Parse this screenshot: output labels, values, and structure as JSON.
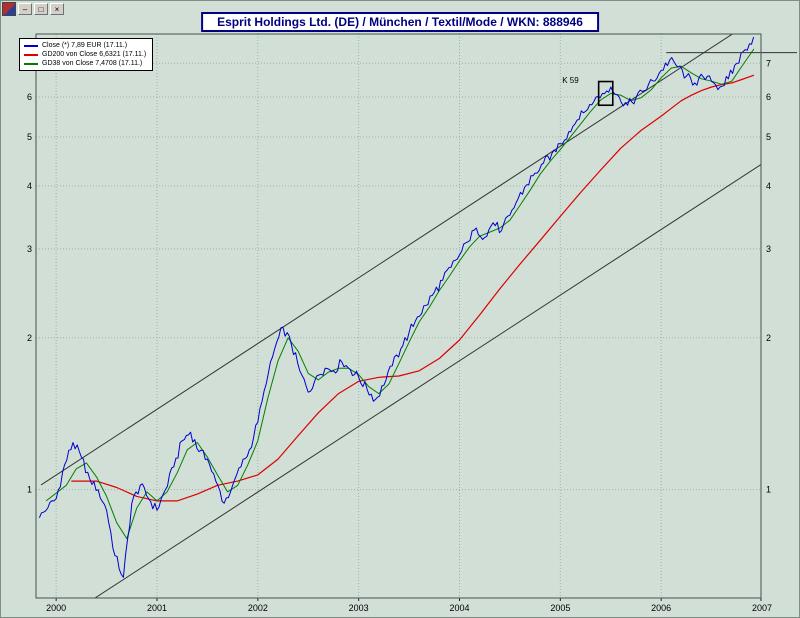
{
  "window": {
    "buttons": [
      {
        "name": "minimize",
        "glyph": "–"
      },
      {
        "name": "restore",
        "glyph": "□"
      },
      {
        "name": "close",
        "glyph": "×"
      }
    ]
  },
  "title": "Esprit Holdings Ltd. (DE) / München / Textil/Mode / WKN: 888946",
  "legend": {
    "items": [
      {
        "id": "close",
        "label": "Close (*) 7,89 EUR (17.11.)",
        "color": "#0000cc"
      },
      {
        "id": "gd200",
        "label": "GD200 von Close 6,6321 (17.11.)",
        "color": "#dd0000"
      },
      {
        "id": "gd38",
        "label": "GD38 von Close 7,4708 (17.11.)",
        "color": "#008000"
      }
    ]
  },
  "chart_data": {
    "type": "line",
    "scale_y": "log",
    "title": "Esprit Holdings Ltd. (DE) / München / Textil/Mode / WKN: 888946",
    "xlim": [
      1999.8,
      2006.99
    ],
    "ylim": [
      0.61,
      8.0
    ],
    "x_ticks": [
      2000,
      2001,
      2002,
      2003,
      2004,
      2005,
      2006,
      2007
    ],
    "y_ticks": [
      1,
      2,
      3,
      4,
      5,
      6,
      7
    ],
    "grid": true,
    "legend_position": "top-left",
    "series": [
      {
        "name": "Close",
        "color": "#0000cc",
        "last_value": 7.89,
        "x_start": 1999.8333,
        "x_step": 0.0833333,
        "values": [
          0.88,
          0.92,
          0.96,
          1.12,
          1.24,
          1.16,
          1.05,
          1.0,
          0.91,
          0.74,
          0.67,
          0.94,
          1.02,
          0.96,
          0.91,
          1.0,
          1.11,
          1.25,
          1.3,
          1.19,
          1.15,
          1.04,
          0.94,
          1.02,
          1.11,
          1.2,
          1.36,
          1.62,
          1.9,
          2.1,
          1.94,
          1.72,
          1.56,
          1.68,
          1.74,
          1.72,
          1.79,
          1.73,
          1.67,
          1.58,
          1.51,
          1.61,
          1.76,
          1.9,
          2.05,
          2.2,
          2.32,
          2.46,
          2.6,
          2.76,
          2.92,
          3.1,
          3.3,
          3.16,
          3.38,
          3.26,
          3.5,
          3.78,
          4.02,
          4.24,
          4.44,
          4.64,
          4.85,
          5.12,
          5.4,
          5.62,
          5.88,
          6.1,
          6.28,
          6.0,
          5.78,
          5.98,
          6.18,
          6.46,
          6.78,
          7.1,
          6.88,
          6.6,
          6.4,
          6.58,
          6.44,
          6.28,
          6.52,
          7.0,
          7.45,
          7.89
        ]
      },
      {
        "name": "GD38 von Close",
        "color": "#008000",
        "last_value": 7.4708,
        "points": [
          [
            1999.9,
            0.95
          ],
          [
            2000.1,
            1.02
          ],
          [
            2000.2,
            1.1
          ],
          [
            2000.3,
            1.13
          ],
          [
            2000.4,
            1.06
          ],
          [
            2000.5,
            0.97
          ],
          [
            2000.6,
            0.86
          ],
          [
            2000.7,
            0.8
          ],
          [
            2000.8,
            0.92
          ],
          [
            2000.9,
            0.99
          ],
          [
            2001.0,
            0.95
          ],
          [
            2001.1,
            0.99
          ],
          [
            2001.2,
            1.08
          ],
          [
            2001.3,
            1.2
          ],
          [
            2001.4,
            1.24
          ],
          [
            2001.5,
            1.16
          ],
          [
            2001.6,
            1.07
          ],
          [
            2001.7,
            0.99
          ],
          [
            2001.8,
            1.02
          ],
          [
            2001.9,
            1.12
          ],
          [
            2002.0,
            1.25
          ],
          [
            2002.1,
            1.52
          ],
          [
            2002.2,
            1.8
          ],
          [
            2002.3,
            2.0
          ],
          [
            2002.4,
            1.88
          ],
          [
            2002.5,
            1.7
          ],
          [
            2002.6,
            1.65
          ],
          [
            2002.7,
            1.71
          ],
          [
            2002.8,
            1.74
          ],
          [
            2002.9,
            1.74
          ],
          [
            2003.0,
            1.69
          ],
          [
            2003.1,
            1.6
          ],
          [
            2003.2,
            1.55
          ],
          [
            2003.3,
            1.62
          ],
          [
            2003.4,
            1.78
          ],
          [
            2003.5,
            1.96
          ],
          [
            2003.6,
            2.15
          ],
          [
            2003.7,
            2.3
          ],
          [
            2003.8,
            2.48
          ],
          [
            2003.9,
            2.65
          ],
          [
            2004.0,
            2.84
          ],
          [
            2004.1,
            3.03
          ],
          [
            2004.2,
            3.18
          ],
          [
            2004.3,
            3.24
          ],
          [
            2004.4,
            3.3
          ],
          [
            2004.5,
            3.42
          ],
          [
            2004.6,
            3.66
          ],
          [
            2004.7,
            3.92
          ],
          [
            2004.8,
            4.22
          ],
          [
            2004.9,
            4.48
          ],
          [
            2005.0,
            4.72
          ],
          [
            2005.1,
            5.0
          ],
          [
            2005.2,
            5.3
          ],
          [
            2005.3,
            5.62
          ],
          [
            2005.4,
            5.92
          ],
          [
            2005.5,
            6.1
          ],
          [
            2005.6,
            6.05
          ],
          [
            2005.7,
            5.9
          ],
          [
            2005.8,
            5.98
          ],
          [
            2005.9,
            6.2
          ],
          [
            2006.0,
            6.55
          ],
          [
            2006.1,
            6.85
          ],
          [
            2006.2,
            6.9
          ],
          [
            2006.3,
            6.7
          ],
          [
            2006.4,
            6.52
          ],
          [
            2006.5,
            6.45
          ],
          [
            2006.6,
            6.36
          ],
          [
            2006.7,
            6.45
          ],
          [
            2006.8,
            6.9
          ],
          [
            2006.92,
            7.47
          ]
        ]
      },
      {
        "name": "GD200 von Close",
        "color": "#dd0000",
        "last_value": 6.6321,
        "points": [
          [
            2000.15,
            1.04
          ],
          [
            2000.4,
            1.04
          ],
          [
            2000.6,
            1.01
          ],
          [
            2000.8,
            0.97
          ],
          [
            2001.0,
            0.95
          ],
          [
            2001.2,
            0.95
          ],
          [
            2001.4,
            0.98
          ],
          [
            2001.6,
            1.02
          ],
          [
            2001.8,
            1.04
          ],
          [
            2002.0,
            1.07
          ],
          [
            2002.2,
            1.15
          ],
          [
            2002.4,
            1.28
          ],
          [
            2002.6,
            1.42
          ],
          [
            2002.8,
            1.55
          ],
          [
            2003.0,
            1.64
          ],
          [
            2003.2,
            1.67
          ],
          [
            2003.4,
            1.68
          ],
          [
            2003.6,
            1.72
          ],
          [
            2003.8,
            1.82
          ],
          [
            2004.0,
            1.98
          ],
          [
            2004.2,
            2.22
          ],
          [
            2004.4,
            2.5
          ],
          [
            2004.6,
            2.8
          ],
          [
            2004.8,
            3.12
          ],
          [
            2005.0,
            3.48
          ],
          [
            2005.2,
            3.88
          ],
          [
            2005.4,
            4.3
          ],
          [
            2005.6,
            4.75
          ],
          [
            2005.8,
            5.15
          ],
          [
            2006.0,
            5.5
          ],
          [
            2006.1,
            5.7
          ],
          [
            2006.2,
            5.9
          ],
          [
            2006.3,
            6.05
          ],
          [
            2006.4,
            6.18
          ],
          [
            2006.5,
            6.28
          ],
          [
            2006.6,
            6.35
          ],
          [
            2006.7,
            6.4
          ],
          [
            2006.8,
            6.5
          ],
          [
            2006.92,
            6.63
          ]
        ]
      }
    ],
    "trendlines": [
      {
        "name": "trend-channel-upper",
        "color": "#333333",
        "from": [
          1999.85,
          1.022
        ],
        "to": [
          2006.99,
          8.71
        ]
      },
      {
        "name": "trend-channel-lower",
        "color": "#333333",
        "from": [
          2000.1,
          0.56
        ],
        "to": [
          2006.99,
          4.41
        ]
      }
    ],
    "horizontal_lines": [
      {
        "name": "resistance-line",
        "color": "#333333",
        "price": 7.35,
        "x_from": 2006.05,
        "x_to": 2007.35
      }
    ],
    "annotations": [
      {
        "type": "text",
        "label": "K 59",
        "x": 2005.1,
        "price": 6.4
      },
      {
        "type": "rect",
        "x1": 2005.38,
        "x2": 2005.52,
        "p1": 5.78,
        "p2": 6.44
      }
    ]
  }
}
